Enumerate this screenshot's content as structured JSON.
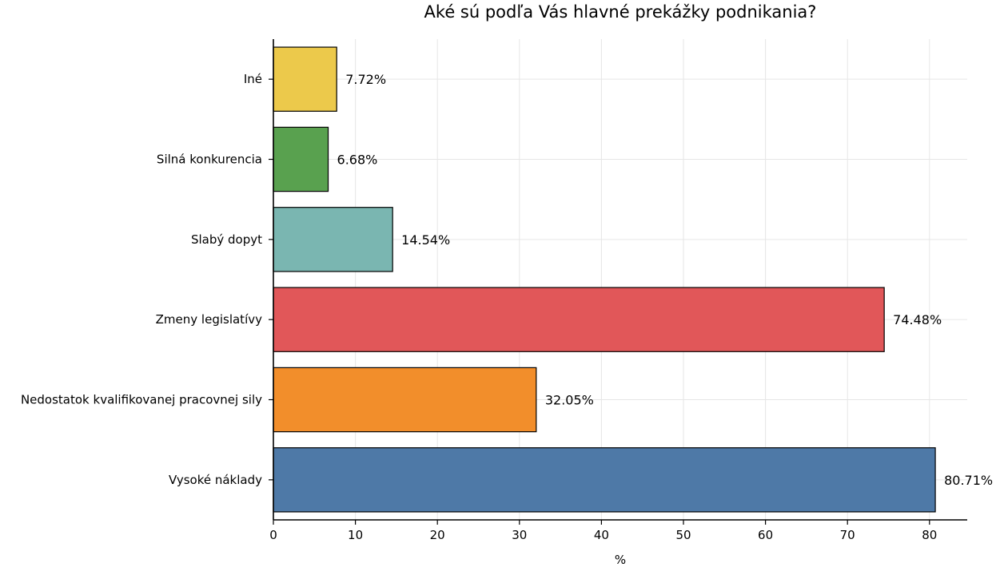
{
  "chart_data": {
    "type": "bar",
    "orientation": "horizontal",
    "title": "Aké sú podľa Vás hlavné prekážky podnikania?",
    "xlabel": "%",
    "ylabel": "",
    "xlim": [
      0,
      85
    ],
    "xticks": [
      0,
      10,
      20,
      30,
      40,
      50,
      60,
      70,
      80
    ],
    "grid": true,
    "categories": [
      "Iné",
      "Silná konkurencia",
      "Slabý dopyt",
      "Zmeny legislatívy",
      "Nedostatok kvalifikovanej pracovnej sily",
      "Vysoké náklady"
    ],
    "values": [
      7.72,
      6.68,
      14.54,
      74.48,
      32.05,
      80.71
    ],
    "value_labels": [
      "7.72%",
      "6.68%",
      "14.54%",
      "74.48%",
      "32.05%",
      "80.71%"
    ],
    "colors": [
      "#ecc94b",
      "#59a14f",
      "#7ab6b1",
      "#e15759",
      "#f28e2b",
      "#4e79a7"
    ]
  }
}
